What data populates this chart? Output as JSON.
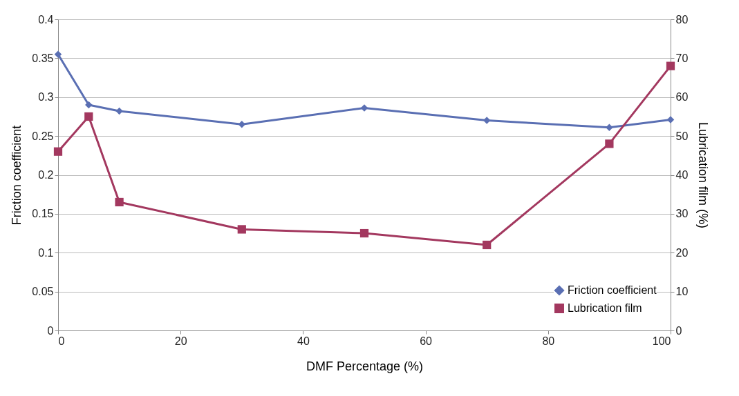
{
  "chart_data": {
    "type": "line",
    "xlabel": "DMF Percentage (%)",
    "ylabel": "Friction coefficient",
    "y2label": "Lubrication film (%)",
    "x": [
      0,
      5,
      10,
      30,
      50,
      70,
      90,
      100
    ],
    "series": [
      {
        "name": "Friction coefficient",
        "color": "#5a6fb3",
        "marker": "diamond",
        "values": [
          0.355,
          0.29,
          0.282,
          0.265,
          0.286,
          0.27,
          0.261,
          0.271
        ]
      },
      {
        "name": "Lubrication film",
        "color": "#a3385f",
        "marker": "square",
        "axis": "y2",
        "values": [
          46,
          55,
          33,
          26,
          25,
          22,
          48,
          68
        ]
      }
    ],
    "xlim": [
      0,
      100
    ],
    "xticks": [
      0,
      20,
      40,
      60,
      80,
      100
    ],
    "ylim": [
      0,
      0.4
    ],
    "yticks": [
      0,
      0.05,
      0.1,
      0.15,
      0.2,
      0.25,
      0.3,
      0.35,
      0.4
    ],
    "y2lim": [
      0,
      80
    ],
    "y2ticks": [
      0,
      10,
      20,
      30,
      40,
      50,
      60,
      70,
      80
    ],
    "grid": "y",
    "legend": "bottom right",
    "line_style": "solid"
  }
}
